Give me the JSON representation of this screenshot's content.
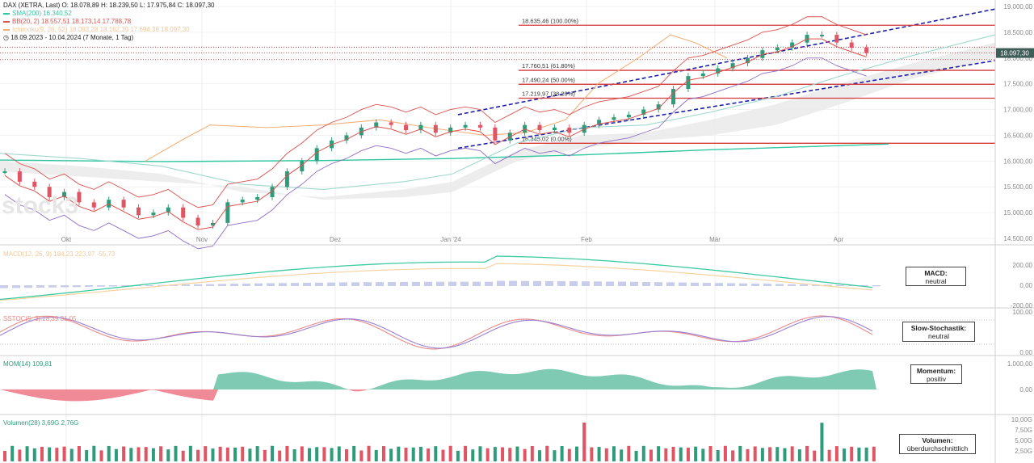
{
  "header": {
    "line1": "DAX (XETRA, Last)  O: 18.078,89  H: 18.239,50  L: 17.975,84  C: 18.097,30",
    "sma": "SMA(200)  16.340,52",
    "bb": "BB(20, 2)  18.557,51  18.173,14  17.788,78",
    "ichimoku": "Ichimoku(9, 26, 52)  18.093,28  18.162,39  17.694,38  18.097,30",
    "range": "18.09.2023 - 10.04.2024  (7 Monate, 1 Tag)"
  },
  "watermark": "stock3",
  "price_axis": {
    "labels": [
      "19.000,00",
      "18.500,00",
      "18.000,00",
      "17.500,00",
      "17.000,00",
      "16.500,00",
      "16.000,00",
      "15.500,00",
      "15.000,00",
      "14.500,00"
    ],
    "last_price_label": "18.097,30"
  },
  "x_axis": {
    "labels": [
      "Okt",
      "Nov",
      "Dez",
      "Jan '24",
      "Feb",
      "Mär",
      "Apr"
    ]
  },
  "fib_levels": [
    {
      "label": "18.635,46 (100.00%)",
      "value": 18635
    },
    {
      "label": "17.760,51 (61.80%)",
      "value": 17760
    },
    {
      "label": "17.490,24 (50.00%)",
      "value": 17490
    },
    {
      "label": "17.219,97 (38.20%)",
      "value": 17220
    },
    {
      "label": "16.345,02 (0.00%)",
      "value": 16345
    }
  ],
  "macd": {
    "legend": "MACD(12, 26, 9)  184,23  223,97  -55,73",
    "axis": [
      "200,00",
      "0,00",
      "-200,00"
    ],
    "box": [
      "MACD:",
      "neutral"
    ]
  },
  "stoch": {
    "legend": "SSTOC(5, 3)  28,39  31,05",
    "axis": [
      "100,00",
      "0,00"
    ],
    "box": [
      "Slow-Stochastik:",
      "neutral"
    ]
  },
  "mom": {
    "legend": "MOM(14)  109,81",
    "axis": [
      "1.000,00",
      "0,00"
    ],
    "box": [
      "Momentum:",
      "positiv"
    ]
  },
  "volume": {
    "legend": "Volumen(28)  3,69G  2,76G",
    "axis": [
      "10,00G",
      "7,50G",
      "5,00G",
      "2,50G"
    ],
    "box": [
      "Volumen:",
      "überdurchschnittlich"
    ]
  },
  "colors": {
    "up": "#2e9c7a",
    "down": "#e05563",
    "bb": "#d9534f",
    "sma": "#2fc7a0",
    "ichimoku_a": "#f3b07a",
    "ichimoku_b": "#9fd8ce",
    "channel": "#1f1fa8",
    "fib": "#d43a3a",
    "macd_signal": "#f6d3a0",
    "macd": "#3ccaa0",
    "stoch_k": "#e88a8a",
    "stoch_d": "#9a7fd0",
    "mom_pos": "#7fcab3",
    "mom_neg": "#f08a96"
  },
  "chart_data": {
    "type": "candlestick",
    "title": "DAX (XETRA, Last)",
    "period": "18.09.2023 - 10.04.2024",
    "ohlc_last": {
      "open": 18078.89,
      "high": 18239.5,
      "low": 17975.84,
      "close": 18097.3
    },
    "months": [
      "Okt",
      "Nov",
      "Dez",
      "Jan '24",
      "Feb",
      "Mär",
      "Apr"
    ],
    "closes_approx": [
      15800,
      15600,
      15500,
      15300,
      15400,
      15200,
      15100,
      15250,
      15100,
      14950,
      15000,
      15100,
      14900,
      14750,
      14800,
      15200,
      15250,
      15300,
      15500,
      15800,
      16000,
      16250,
      16400,
      16500,
      16650,
      16750,
      16700,
      16600,
      16700,
      16550,
      16650,
      16700,
      16650,
      16400,
      16550,
      16700,
      16600,
      16650,
      16550,
      16700,
      16800,
      16850,
      16900,
      17000,
      17100,
      17400,
      17650,
      17700,
      17800,
      17900,
      18000,
      18150,
      18200,
      18300,
      18450,
      18450,
      18300,
      18200,
      18100
    ],
    "ylim": [
      14500,
      19000
    ]
  }
}
